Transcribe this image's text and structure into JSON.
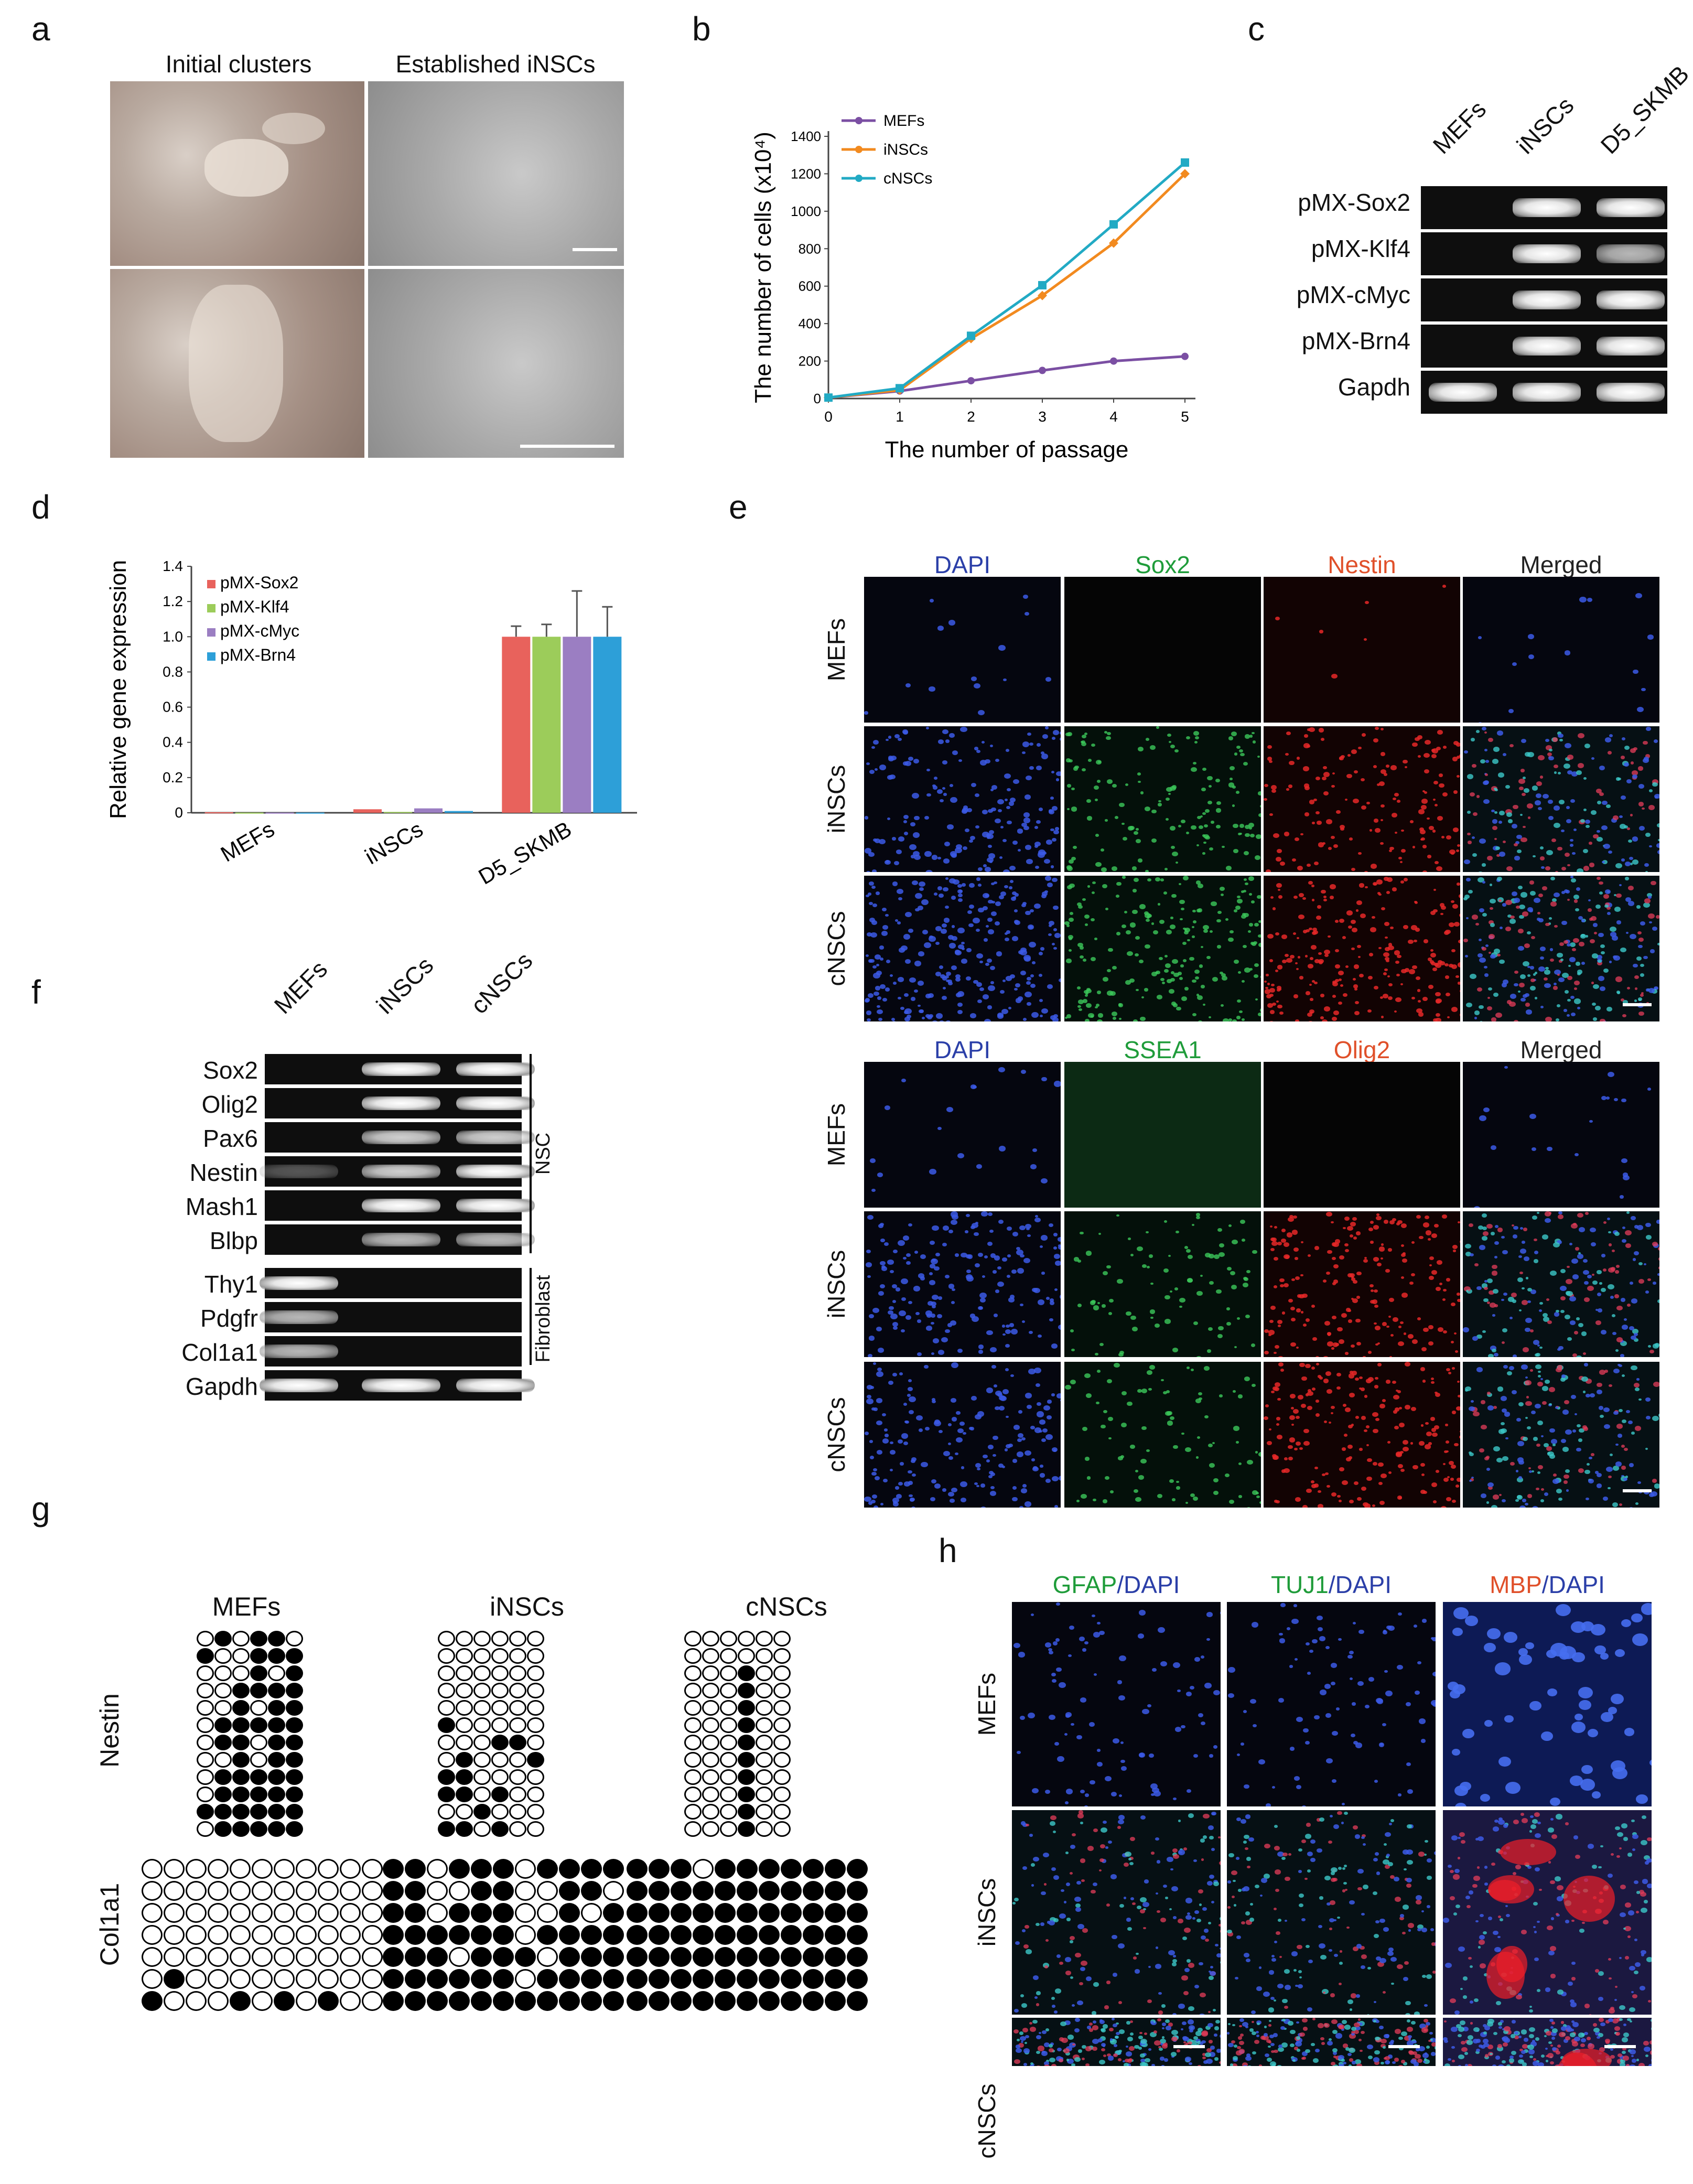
{
  "panels": {
    "a": {
      "label": "a",
      "headers": [
        "Initial clusters",
        "Established iNSCs"
      ]
    },
    "b": {
      "label": "b"
    },
    "c": {
      "label": "c",
      "lanes": [
        "MEFs",
        "iNSCs",
        "D5_SKMB"
      ],
      "rows": [
        {
          "name": "pMX-Sox2",
          "bands": [
            0,
            1,
            1
          ]
        },
        {
          "name": "pMX-Klf4",
          "bands": [
            0,
            1,
            0.7
          ]
        },
        {
          "name": "pMX-cMyc",
          "bands": [
            0,
            1,
            1
          ]
        },
        {
          "name": "pMX-Brn4",
          "bands": [
            0,
            1,
            1
          ]
        },
        {
          "name": "Gapdh",
          "bands": [
            1,
            1,
            1
          ]
        }
      ]
    },
    "d": {
      "label": "d"
    },
    "e": {
      "label": "e",
      "top_headers": [
        "DAPI",
        "Sox2",
        "Nestin",
        "Merged"
      ],
      "bottom_headers": [
        "DAPI",
        "SSEA1",
        "Olig2",
        "Merged"
      ],
      "rows": [
        "MEFs",
        "iNSCs",
        "cNSCs"
      ],
      "header_colors": [
        "#2b3fa8",
        "#1f9c3a",
        "#e0502a",
        "#222222"
      ]
    },
    "f": {
      "label": "f",
      "lanes": [
        "MEFs",
        "iNSCs",
        "cNSCs"
      ],
      "rows": [
        {
          "name": "Sox2",
          "bands": [
            0,
            1,
            1
          ]
        },
        {
          "name": "Olig2",
          "bands": [
            0,
            1,
            1
          ]
        },
        {
          "name": "Pax6",
          "bands": [
            0,
            0.8,
            0.8
          ]
        },
        {
          "name": "Nestin",
          "bands": [
            0.3,
            0.8,
            1
          ]
        },
        {
          "name": "Mash1",
          "bands": [
            0,
            1,
            1
          ]
        },
        {
          "name": "Blbp",
          "bands": [
            0,
            0.7,
            0.7
          ]
        },
        {
          "name": "Thy1",
          "bands": [
            1,
            0,
            0
          ]
        },
        {
          "name": "Pdgfr",
          "bands": [
            0.7,
            0,
            0
          ]
        },
        {
          "name": "Col1a1",
          "bands": [
            0.7,
            0,
            0
          ]
        },
        {
          "name": "Gapdh",
          "bands": [
            1,
            1,
            1
          ]
        }
      ],
      "group_labels": [
        "NSC",
        "Fibroblast"
      ]
    },
    "g": {
      "label": "g",
      "columns": [
        "MEFs",
        "iNSCs",
        "cNSCs"
      ],
      "rows": [
        "Nestin",
        "Col1a1"
      ]
    },
    "h": {
      "label": "h",
      "headers": [
        {
          "a": "GFAP",
          "b": "/DAPI",
          "color": "#1f9c3a"
        },
        {
          "a": "TUJ1",
          "b": "/DAPI",
          "color": "#1f9c3a"
        },
        {
          "a": "MBP",
          "b": "/DAPI",
          "color": "#e0502a"
        }
      ],
      "rows": [
        "MEFs",
        "iNSCs",
        "cNSCs"
      ]
    }
  },
  "chart_data": [
    {
      "type": "line",
      "panel": "b",
      "title": "",
      "xlabel": "The number of passage",
      "ylabel": "The number of cells (x10⁴)",
      "x": [
        0,
        1,
        2,
        3,
        4,
        5
      ],
      "xlim": [
        0,
        5
      ],
      "ylim": [
        0,
        1400
      ],
      "yticks": [
        0,
        200,
        400,
        600,
        800,
        1000,
        1200,
        1400
      ],
      "legend": "top-left",
      "series": [
        {
          "name": "MEFs",
          "color": "#7b4fa3",
          "values": [
            5,
            40,
            95,
            150,
            200,
            225
          ]
        },
        {
          "name": "iNSCs",
          "color": "#f28a1f",
          "values": [
            5,
            45,
            320,
            550,
            830,
            1200
          ]
        },
        {
          "name": "cNSCs",
          "color": "#22aac4",
          "values": [
            5,
            55,
            335,
            605,
            930,
            1260
          ]
        }
      ]
    },
    {
      "type": "bar",
      "panel": "d",
      "title": "",
      "xlabel": "",
      "ylabel": "Relative gene expression",
      "categories": [
        "MEFs",
        "iNSCs",
        "D5_SKMB"
      ],
      "ylim": [
        0,
        1.4
      ],
      "yticks": [
        0,
        0.2,
        0.4,
        0.6,
        0.8,
        1.0,
        1.2,
        1.4
      ],
      "ytick_labels": [
        "0",
        "0.2",
        "0.4",
        "0.6",
        "0.8",
        "1.0",
        "1.2",
        "1.4"
      ],
      "legend": "top-left",
      "series": [
        {
          "name": "pMX-Sox2",
          "color": "#e8625c",
          "values": [
            0.003,
            0.02,
            1.0
          ],
          "errors": [
            0,
            0,
            0.06
          ]
        },
        {
          "name": "pMX-Klf4",
          "color": "#9ccc5a",
          "values": [
            0.001,
            0.005,
            1.0
          ],
          "errors": [
            0,
            0,
            0.07
          ]
        },
        {
          "name": "pMX-cMyc",
          "color": "#9b7ec2",
          "values": [
            0.001,
            0.025,
            1.0
          ],
          "errors": [
            0,
            0,
            0.26
          ]
        },
        {
          "name": "pMX-Brn4",
          "color": "#2d9fd8",
          "values": [
            0.001,
            0.01,
            1.0
          ],
          "errors": [
            0,
            0,
            0.17
          ]
        }
      ]
    }
  ]
}
